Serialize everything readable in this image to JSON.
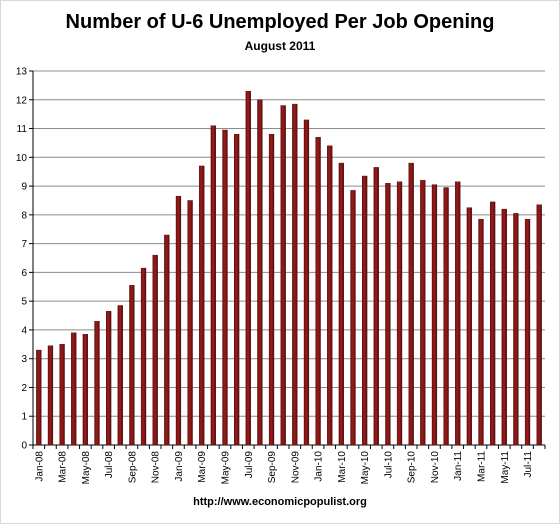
{
  "chart_data": {
    "type": "bar",
    "title": "Number of U-6 Unemployed Per Job Opening",
    "subtitle": "August 2011",
    "source": "http://www.economicpopulist.org",
    "xlabel": "",
    "ylabel": "",
    "ylim": [
      0,
      13
    ],
    "yticks": [
      0,
      1,
      2,
      3,
      4,
      5,
      6,
      7,
      8,
      9,
      10,
      11,
      12,
      13
    ],
    "grid": true,
    "legend": "none",
    "bar_color": "#9b1c1c",
    "categories": [
      "Jan-08",
      "Feb-08",
      "Mar-08",
      "Apr-08",
      "May-08",
      "Jun-08",
      "Jul-08",
      "Aug-08",
      "Sep-08",
      "Oct-08",
      "Nov-08",
      "Dec-08",
      "Jan-09",
      "Feb-09",
      "Mar-09",
      "Apr-09",
      "May-09",
      "Jun-09",
      "Jul-09",
      "Aug-09",
      "Sep-09",
      "Oct-09",
      "Nov-09",
      "Dec-09",
      "Jan-10",
      "Feb-10",
      "Mar-10",
      "Apr-10",
      "May-10",
      "Jun-10",
      "Jul-10",
      "Aug-10",
      "Sep-10",
      "Oct-10",
      "Nov-10",
      "Dec-10",
      "Jan-11",
      "Feb-11",
      "Mar-11",
      "Apr-11",
      "May-11",
      "Jun-11",
      "Jul-11",
      "Aug-11"
    ],
    "tick_labels": [
      "Jan-08",
      "Mar-08",
      "May-08",
      "Jul-08",
      "Sep-08",
      "Nov-08",
      "Jan-09",
      "Mar-09",
      "May-09",
      "Jul-09",
      "Sep-09",
      "Nov-09",
      "Jan-10",
      "Mar-10",
      "May-10",
      "Jul-10",
      "Sep-10",
      "Nov-10",
      "Jan-11",
      "Mar-11",
      "May-11",
      "Jul-11"
    ],
    "values": [
      3.3,
      3.45,
      3.5,
      3.9,
      3.85,
      4.3,
      4.65,
      4.85,
      5.55,
      6.15,
      6.6,
      7.3,
      8.65,
      8.5,
      9.7,
      11.1,
      10.95,
      10.8,
      12.3,
      12.0,
      10.8,
      11.8,
      11.85,
      11.3,
      10.7,
      10.4,
      9.8,
      8.85,
      9.35,
      9.65,
      9.1,
      9.15,
      9.8,
      9.2,
      9.05,
      8.95,
      9.15,
      8.25,
      7.85,
      8.45,
      8.2,
      8.05,
      7.85,
      8.35
    ]
  }
}
